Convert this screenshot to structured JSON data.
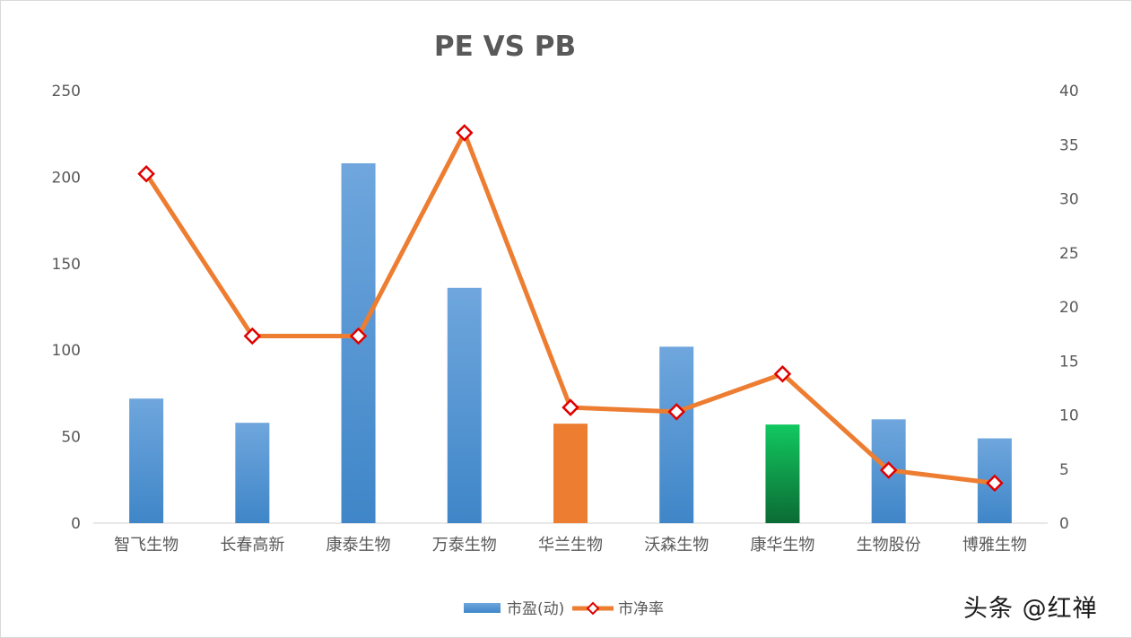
{
  "chart_data": {
    "type": "bar+line",
    "title": "PE VS PB",
    "categories": [
      "智飞生物",
      "长春高新",
      "康泰生物",
      "万泰生物",
      "华兰生物",
      "沃森生物",
      "康华生物",
      "生物股份",
      "博雅生物"
    ],
    "series": [
      {
        "name": "市盈(动)",
        "type": "bar",
        "axis": "left",
        "values": [
          72,
          58,
          208,
          136,
          57.5,
          102,
          57,
          60,
          49
        ],
        "colors": [
          "#5b9bd5",
          "#5b9bd5",
          "#5b9bd5",
          "#5b9bd5",
          "#ed7d31",
          "#5b9bd5",
          "#12c45e",
          "#5b9bd5",
          "#5b9bd5"
        ]
      },
      {
        "name": "市净率",
        "type": "line",
        "axis": "right",
        "values": [
          32.3,
          17.3,
          17.3,
          36.1,
          10.7,
          10.3,
          13.8,
          4.9,
          3.7
        ],
        "line_color": "#ed7d31",
        "marker_color": "#e00000"
      }
    ],
    "y_left": {
      "min": 0,
      "max": 250,
      "ticks": [
        "0",
        "50",
        "100",
        "150",
        "200",
        "250"
      ]
    },
    "y_right": {
      "min": 0,
      "max": 40,
      "ticks": [
        "0",
        "5",
        "10",
        "15",
        "20",
        "25",
        "30",
        "35",
        "40"
      ]
    },
    "grid": false,
    "legend_position": "bottom"
  },
  "watermark": "头条 @红禅"
}
